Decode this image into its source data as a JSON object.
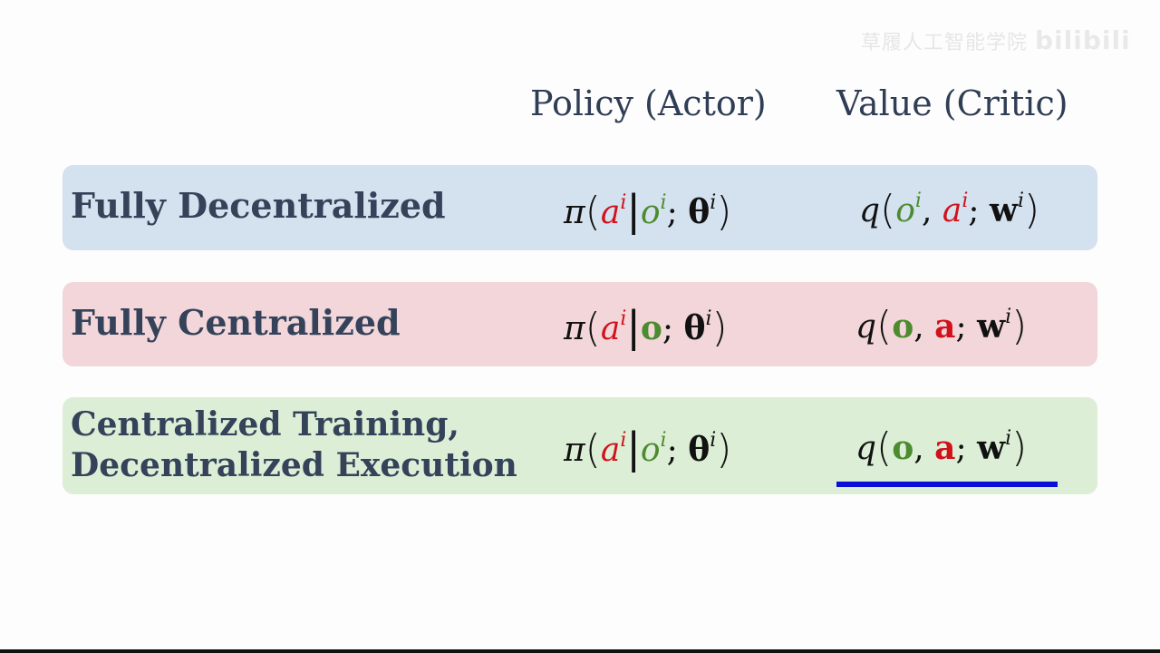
{
  "watermark": {
    "text": "草履人工智能学院",
    "brand": "bilibili"
  },
  "headers": {
    "policy": "Policy (Actor)",
    "value": "Value (Critic)"
  },
  "colors": {
    "row_decentralized": "#d4e1ef",
    "row_centralized": "#f2d6d9",
    "row_ctde": "#dcefd6",
    "action_red": "#d1121b",
    "observation_green": "#4c8b2e",
    "highlight_underline": "#0a10d8",
    "heading_text": "#34425a"
  },
  "rows": [
    {
      "label_lines": [
        "Fully Decentralized"
      ],
      "policy": {
        "pi": "π",
        "lparen": "(",
        "a": "a",
        "a_sup": "i",
        "bar": "|",
        "o": "o",
        "o_sup": "i",
        "semi": ";",
        "theta": "θ",
        "theta_sup": "i",
        "rparen": ")"
      },
      "value": {
        "q": "q",
        "lparen": "(",
        "first": "o",
        "first_sup": "i",
        "comma": ",",
        "second": "a",
        "second_sup": "i",
        "semi": ";",
        "w": "w",
        "w_sup": "i",
        "rparen": ")"
      }
    },
    {
      "label_lines": [
        "Fully Centralized"
      ],
      "policy": {
        "pi": "π",
        "lparen": "(",
        "a": "a",
        "a_sup": "i",
        "bar": "|",
        "o": "o",
        "semi": ";",
        "theta": "θ",
        "theta_sup": "i",
        "rparen": ")"
      },
      "value": {
        "q": "q",
        "lparen": "(",
        "first": "o",
        "comma": ",",
        "second": "a",
        "semi": ";",
        "w": "w",
        "w_sup": "i",
        "rparen": ")"
      }
    },
    {
      "label_lines": [
        "Centralized Training,",
        "Decentralized Execution"
      ],
      "policy": {
        "pi": "π",
        "lparen": "(",
        "a": "a",
        "a_sup": "i",
        "bar": "|",
        "o": "o",
        "o_sup": "i",
        "semi": ";",
        "theta": "θ",
        "theta_sup": "i",
        "rparen": ")"
      },
      "value": {
        "q": "q",
        "lparen": "(",
        "first": "o",
        "comma": ",",
        "second": "a",
        "semi": ";",
        "w": "w",
        "w_sup": "i",
        "rparen": ")"
      }
    }
  ]
}
